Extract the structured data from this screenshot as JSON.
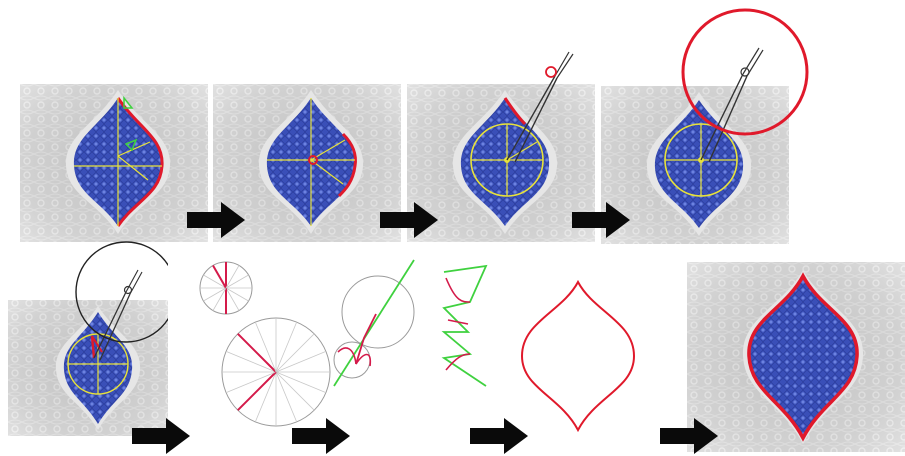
{
  "colors": {
    "tile_bg": "#d4d4d4",
    "ornament": "#ececec",
    "medallion": "#3a4fb8",
    "medallion_dark": "#253890",
    "outline_red": "#e0192b",
    "guide_yellow": "#e8e23a",
    "guide_green": "#3fd13f",
    "crimson": "#d41a4a",
    "line_gray": "#9a9a9a",
    "compass_gray": "#333333",
    "arrow_black": "#0a0a0a"
  },
  "steps": [
    {
      "id": 1,
      "description_icon": "medallion-with-partial-outline"
    },
    {
      "id": 2,
      "description_icon": "medallion-with-center-point"
    },
    {
      "id": 3,
      "description_icon": "medallion-with-compass"
    },
    {
      "id": 4,
      "description_icon": "medallion-with-large-circle"
    },
    {
      "id": 5,
      "description_icon": "medallion-with-gray-circle"
    },
    {
      "id": 6,
      "description_icon": "circle-divisions"
    },
    {
      "id": 7,
      "description_icon": "arc-construction"
    },
    {
      "id": 8,
      "description_icon": "zigzag-guides"
    },
    {
      "id": 9,
      "description_icon": "ogee-outline"
    },
    {
      "id": 10,
      "description_icon": "final-medallion"
    }
  ],
  "arrows": [
    {
      "icon": "right-arrow-icon"
    },
    {
      "icon": "right-arrow-icon"
    },
    {
      "icon": "right-arrow-icon"
    },
    {
      "icon": "right-arrow-icon"
    },
    {
      "icon": "right-arrow-icon"
    },
    {
      "icon": "right-arrow-icon"
    },
    {
      "icon": "right-arrow-icon"
    }
  ]
}
